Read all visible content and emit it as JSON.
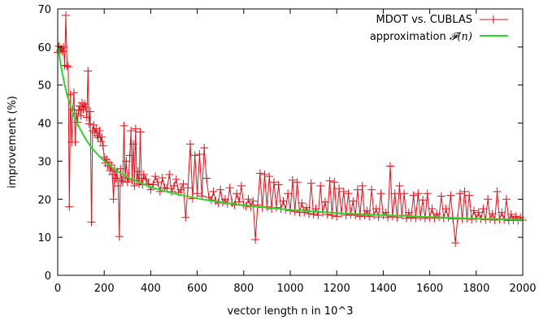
{
  "chart_data": {
    "type": "line",
    "xlabel": "vector length n in 10^3",
    "ylabel": "improvement (%)",
    "xlim": [
      0,
      2000
    ],
    "ylim": [
      0,
      70
    ],
    "xticks": [
      0,
      200,
      400,
      600,
      800,
      1000,
      1200,
      1400,
      1600,
      1800,
      2000
    ],
    "yticks": [
      0,
      10,
      20,
      30,
      40,
      50,
      60,
      70
    ],
    "grid": false,
    "legend_position": "top-right",
    "colors": {
      "measured": "#e3121b",
      "approx": "#2ad82a",
      "frame": "#000000"
    },
    "series": [
      {
        "name": "MDOT vs. CUBLAS",
        "style": "line-with-plus-markers",
        "points": [
          [
            0,
            58.6
          ],
          [
            5,
            60.2
          ],
          [
            10,
            59.1
          ],
          [
            15,
            59.6
          ],
          [
            20,
            58.8
          ],
          [
            25,
            60.0
          ],
          [
            30,
            55.2
          ],
          [
            35,
            68.3
          ],
          [
            40,
            55.0
          ],
          [
            45,
            54.8
          ],
          [
            50,
            18.0
          ],
          [
            55,
            47.5
          ],
          [
            60,
            35.0
          ],
          [
            65,
            43.5
          ],
          [
            70,
            48.0
          ],
          [
            75,
            35.0
          ],
          [
            80,
            42.5
          ],
          [
            85,
            40.2
          ],
          [
            90,
            43.4
          ],
          [
            95,
            44.5
          ],
          [
            100,
            42.0
          ],
          [
            105,
            45.3
          ],
          [
            110,
            43.7
          ],
          [
            115,
            45.0
          ],
          [
            120,
            44.2
          ],
          [
            125,
            41.5
          ],
          [
            130,
            53.7
          ],
          [
            135,
            39.8
          ],
          [
            140,
            43.0
          ],
          [
            145,
            14.0
          ],
          [
            150,
            38.0
          ],
          [
            155,
            39.5
          ],
          [
            160,
            37.5
          ],
          [
            165,
            38.5
          ],
          [
            170,
            36.7
          ],
          [
            175,
            36.2
          ],
          [
            180,
            38.0
          ],
          [
            185,
            35.2
          ],
          [
            190,
            36.3
          ],
          [
            195,
            34.0
          ],
          [
            200,
            31.0
          ],
          [
            205,
            29.5
          ],
          [
            210,
            30.5
          ],
          [
            215,
            28.8
          ],
          [
            220,
            29.6
          ],
          [
            225,
            27.5
          ],
          [
            230,
            29.0
          ],
          [
            235,
            26.5
          ],
          [
            240,
            20.0
          ],
          [
            245,
            27.8
          ],
          [
            250,
            25.5
          ],
          [
            255,
            27.2
          ],
          [
            260,
            23.5
          ],
          [
            265,
            10.2
          ],
          [
            270,
            28.0
          ],
          [
            275,
            25.0
          ],
          [
            280,
            24.6
          ],
          [
            285,
            39.3
          ],
          [
            290,
            25.8
          ],
          [
            295,
            30.0
          ],
          [
            300,
            24.5
          ],
          [
            305,
            25.5
          ],
          [
            310,
            31.5
          ],
          [
            315,
            38.0
          ],
          [
            320,
            25.0
          ],
          [
            325,
            34.5
          ],
          [
            330,
            23.5
          ],
          [
            335,
            38.5
          ],
          [
            340,
            24.8
          ],
          [
            345,
            27.3
          ],
          [
            350,
            24.0
          ],
          [
            355,
            37.7
          ],
          [
            360,
            25.5
          ],
          [
            365,
            23.8
          ],
          [
            370,
            26.5
          ],
          [
            380,
            25.2
          ],
          [
            390,
            24.0
          ],
          [
            400,
            22.5
          ],
          [
            410,
            23.8
          ],
          [
            420,
            26.0
          ],
          [
            430,
            24.5
          ],
          [
            440,
            22.0
          ],
          [
            450,
            25.6
          ],
          [
            460,
            23.0
          ],
          [
            470,
            22.8
          ],
          [
            480,
            26.5
          ],
          [
            490,
            22.0
          ],
          [
            500,
            23.5
          ],
          [
            510,
            25.2
          ],
          [
            520,
            21.8
          ],
          [
            530,
            22.5
          ],
          [
            540,
            24.0
          ],
          [
            550,
            15.2
          ],
          [
            560,
            23.0
          ],
          [
            570,
            34.5
          ],
          [
            580,
            20.2
          ],
          [
            590,
            31.5
          ],
          [
            600,
            21.5
          ],
          [
            610,
            31.8
          ],
          [
            620,
            20.8
          ],
          [
            630,
            33.5
          ],
          [
            640,
            25.5
          ],
          [
            650,
            20.5
          ],
          [
            660,
            19.8
          ],
          [
            670,
            22.0
          ],
          [
            680,
            19.5
          ],
          [
            690,
            19.0
          ],
          [
            700,
            22.5
          ],
          [
            710,
            19.2
          ],
          [
            720,
            20.0
          ],
          [
            730,
            18.8
          ],
          [
            740,
            23.0
          ],
          [
            750,
            19.0
          ],
          [
            760,
            18.5
          ],
          [
            770,
            21.5
          ],
          [
            780,
            19.3
          ],
          [
            790,
            23.5
          ],
          [
            800,
            18.5
          ],
          [
            810,
            18.2
          ],
          [
            820,
            20.0
          ],
          [
            830,
            18.0
          ],
          [
            840,
            19.5
          ],
          [
            850,
            9.4
          ],
          [
            860,
            18.5
          ],
          [
            870,
            26.8
          ],
          [
            880,
            17.8
          ],
          [
            890,
            26.5
          ],
          [
            900,
            18.0
          ],
          [
            910,
            26.0
          ],
          [
            920,
            17.5
          ],
          [
            930,
            24.5
          ],
          [
            940,
            17.8
          ],
          [
            950,
            23.8
          ],
          [
            960,
            17.5
          ],
          [
            970,
            19.5
          ],
          [
            980,
            17.3
          ],
          [
            990,
            21.5
          ],
          [
            1000,
            17.0
          ],
          [
            1010,
            25.0
          ],
          [
            1020,
            16.8
          ],
          [
            1030,
            24.5
          ],
          [
            1040,
            16.5
          ],
          [
            1050,
            19.0
          ],
          [
            1060,
            16.5
          ],
          [
            1070,
            17.8
          ],
          [
            1080,
            16.2
          ],
          [
            1090,
            24.2
          ],
          [
            1100,
            16.0
          ],
          [
            1110,
            17.5
          ],
          [
            1120,
            15.8
          ],
          [
            1130,
            23.5
          ],
          [
            1140,
            16.5
          ],
          [
            1150,
            19.3
          ],
          [
            1160,
            16.0
          ],
          [
            1170,
            24.8
          ],
          [
            1180,
            15.8
          ],
          [
            1190,
            24.5
          ],
          [
            1200,
            15.5
          ],
          [
            1210,
            22.8
          ],
          [
            1220,
            16.2
          ],
          [
            1230,
            22.0
          ],
          [
            1240,
            15.8
          ],
          [
            1250,
            21.5
          ],
          [
            1260,
            16.0
          ],
          [
            1270,
            19.5
          ],
          [
            1280,
            15.8
          ],
          [
            1290,
            22.5
          ],
          [
            1300,
            15.5
          ],
          [
            1310,
            23.5
          ],
          [
            1320,
            15.8
          ],
          [
            1330,
            17.0
          ],
          [
            1340,
            15.5
          ],
          [
            1350,
            22.5
          ],
          [
            1360,
            15.8
          ],
          [
            1370,
            17.5
          ],
          [
            1380,
            15.3
          ],
          [
            1390,
            21.5
          ],
          [
            1400,
            15.8
          ],
          [
            1410,
            16.5
          ],
          [
            1420,
            15.2
          ],
          [
            1430,
            28.7
          ],
          [
            1440,
            15.5
          ],
          [
            1450,
            21.5
          ],
          [
            1460,
            15.2
          ],
          [
            1470,
            23.5
          ],
          [
            1480,
            15.8
          ],
          [
            1490,
            21.5
          ],
          [
            1500,
            15.0
          ],
          [
            1510,
            16.5
          ],
          [
            1520,
            15.2
          ],
          [
            1530,
            21.0
          ],
          [
            1540,
            15.0
          ],
          [
            1550,
            21.5
          ],
          [
            1560,
            15.3
          ],
          [
            1570,
            19.8
          ],
          [
            1580,
            15.0
          ],
          [
            1590,
            21.5
          ],
          [
            1600,
            15.2
          ],
          [
            1610,
            17.5
          ],
          [
            1620,
            15.0
          ],
          [
            1630,
            16.2
          ],
          [
            1640,
            15.3
          ],
          [
            1650,
            20.8
          ],
          [
            1660,
            15.0
          ],
          [
            1670,
            17.5
          ],
          [
            1680,
            15.2
          ],
          [
            1690,
            21.0
          ],
          [
            1700,
            14.8
          ],
          [
            1710,
            8.5
          ],
          [
            1720,
            15.0
          ],
          [
            1730,
            21.5
          ],
          [
            1740,
            14.8
          ],
          [
            1750,
            22.0
          ],
          [
            1760,
            15.0
          ],
          [
            1770,
            21.0
          ],
          [
            1780,
            14.7
          ],
          [
            1790,
            17.0
          ],
          [
            1800,
            14.9
          ],
          [
            1810,
            16.5
          ],
          [
            1820,
            14.8
          ],
          [
            1830,
            17.5
          ],
          [
            1840,
            14.6
          ],
          [
            1850,
            20.0
          ],
          [
            1860,
            14.8
          ],
          [
            1870,
            16.2
          ],
          [
            1880,
            14.5
          ],
          [
            1890,
            22.0
          ],
          [
            1900,
            14.7
          ],
          [
            1910,
            16.5
          ],
          [
            1920,
            14.6
          ],
          [
            1930,
            20.0
          ],
          [
            1940,
            14.4
          ],
          [
            1950,
            16.0
          ],
          [
            1960,
            14.5
          ],
          [
            1970,
            15.5
          ],
          [
            1980,
            14.4
          ],
          [
            1990,
            15.2
          ],
          [
            2000,
            14.5
          ]
        ]
      },
      {
        "name": "approximation",
        "name_math": "𝓕(n)",
        "style": "smooth-line",
        "points": [
          [
            0,
            60.8
          ],
          [
            10,
            56.5
          ],
          [
            20,
            53.0
          ],
          [
            30,
            50.0
          ],
          [
            40,
            47.5
          ],
          [
            50,
            45.5
          ],
          [
            60,
            43.6
          ],
          [
            70,
            42.0
          ],
          [
            80,
            40.5
          ],
          [
            90,
            39.2
          ],
          [
            100,
            38.0
          ],
          [
            120,
            35.8
          ],
          [
            140,
            34.0
          ],
          [
            160,
            32.5
          ],
          [
            180,
            31.2
          ],
          [
            200,
            30.0
          ],
          [
            250,
            27.6
          ],
          [
            300,
            25.8
          ],
          [
            350,
            24.4
          ],
          [
            400,
            23.2
          ],
          [
            450,
            22.3
          ],
          [
            500,
            21.5
          ],
          [
            600,
            20.2
          ],
          [
            700,
            19.2
          ],
          [
            800,
            18.4
          ],
          [
            900,
            17.8
          ],
          [
            1000,
            17.2
          ],
          [
            1100,
            16.8
          ],
          [
            1200,
            16.4
          ],
          [
            1300,
            16.1
          ],
          [
            1400,
            15.8
          ],
          [
            1500,
            15.6
          ],
          [
            1600,
            15.3
          ],
          [
            1700,
            15.1
          ],
          [
            1800,
            14.9
          ],
          [
            1900,
            14.8
          ],
          [
            2000,
            14.6
          ]
        ]
      }
    ]
  }
}
